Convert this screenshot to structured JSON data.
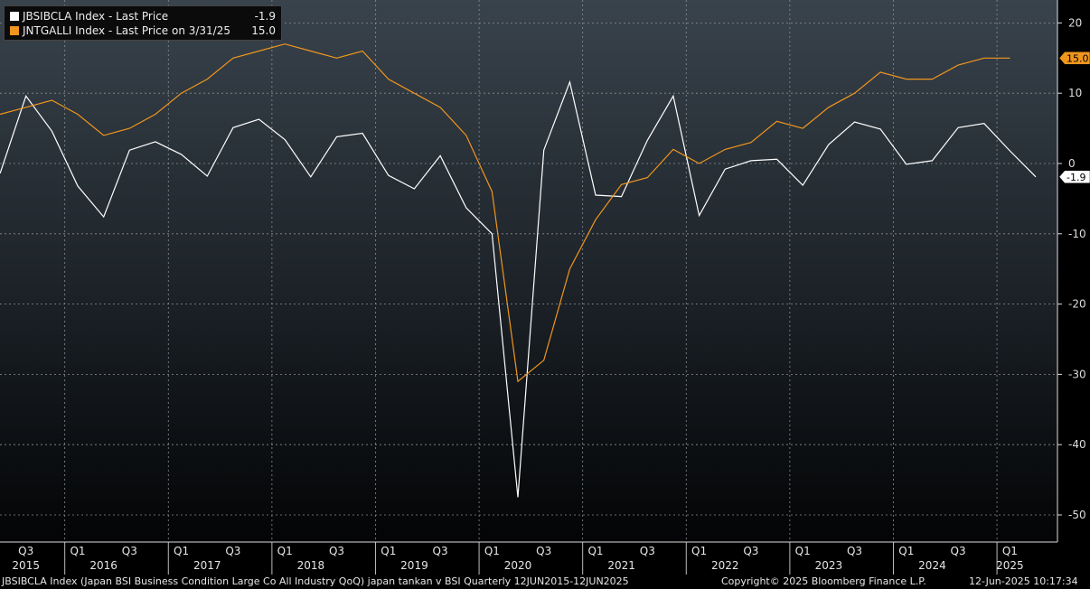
{
  "legend": {
    "s1": {
      "name": "JBSIBCLA Index - Last Price",
      "value": "-1.9",
      "color": "#ffffff"
    },
    "s2": {
      "name": "JNTGALLI Index - Last Price on 3/31/25",
      "value": "15.0",
      "color": "#f0961e"
    }
  },
  "footer": {
    "description": "JBSIBCLA Index (Japan BSI Business Condition Large Co All Industry QoQ) japan tankan v BSI  Quarterly 12JUN2015-12JUN2025",
    "copyright": "Copyright© 2025 Bloomberg Finance L.P.",
    "timestamp": "12-Jun-2025 10:17:34"
  },
  "chart_data": {
    "type": "line",
    "ylim": [
      -53,
      21
    ],
    "yticks": [
      20,
      10,
      0,
      -10,
      -20,
      -30,
      -40,
      -50
    ],
    "grid": true,
    "legend_position": "top-left",
    "x_quarter_labels": [
      {
        "q": 2015.5,
        "label": "Q3"
      },
      {
        "q": 2016.0,
        "label": "Q1"
      },
      {
        "q": 2016.5,
        "label": "Q3"
      },
      {
        "q": 2017.0,
        "label": "Q1"
      },
      {
        "q": 2017.5,
        "label": "Q3"
      },
      {
        "q": 2018.0,
        "label": "Q1"
      },
      {
        "q": 2018.5,
        "label": "Q3"
      },
      {
        "q": 2019.0,
        "label": "Q1"
      },
      {
        "q": 2019.5,
        "label": "Q3"
      },
      {
        "q": 2020.0,
        "label": "Q1"
      },
      {
        "q": 2020.5,
        "label": "Q3"
      },
      {
        "q": 2021.0,
        "label": "Q1"
      },
      {
        "q": 2021.5,
        "label": "Q3"
      },
      {
        "q": 2022.0,
        "label": "Q1"
      },
      {
        "q": 2022.5,
        "label": "Q3"
      },
      {
        "q": 2023.0,
        "label": "Q1"
      },
      {
        "q": 2023.5,
        "label": "Q3"
      },
      {
        "q": 2024.0,
        "label": "Q1"
      },
      {
        "q": 2024.5,
        "label": "Q3"
      },
      {
        "q": 2025.0,
        "label": "Q1"
      }
    ],
    "x_year_labels": [
      {
        "q": 2015.5,
        "label": "2015"
      },
      {
        "q": 2016.25,
        "label": "2016"
      },
      {
        "q": 2017.25,
        "label": "2017"
      },
      {
        "q": 2018.25,
        "label": "2018"
      },
      {
        "q": 2019.25,
        "label": "2019"
      },
      {
        "q": 2020.25,
        "label": "2020"
      },
      {
        "q": 2021.25,
        "label": "2021"
      },
      {
        "q": 2022.25,
        "label": "2022"
      },
      {
        "q": 2023.25,
        "label": "2023"
      },
      {
        "q": 2024.25,
        "label": "2024"
      },
      {
        "q": 2025.0,
        "label": "2025"
      }
    ],
    "x_year_separators": [
      2015.875,
      2016.875,
      2017.875,
      2018.875,
      2019.875,
      2020.875,
      2021.875,
      2022.875,
      2023.875,
      2024.875
    ],
    "series": [
      {
        "name": "JBSIBCLA Index - Last Price",
        "color": "#ffffff",
        "last_value": -1.9,
        "x": [
          2015.25,
          2015.5,
          2015.75,
          2016.0,
          2016.25,
          2016.5,
          2016.75,
          2017.0,
          2017.25,
          2017.5,
          2017.75,
          2018.0,
          2018.25,
          2018.5,
          2018.75,
          2019.0,
          2019.25,
          2019.5,
          2019.75,
          2020.0,
          2020.25,
          2020.5,
          2020.75,
          2021.0,
          2021.25,
          2021.5,
          2021.75,
          2022.0,
          2022.25,
          2022.5,
          2022.75,
          2023.0,
          2023.25,
          2023.5,
          2023.75,
          2024.0,
          2024.25,
          2024.5,
          2024.75,
          2025.0,
          2025.25
        ],
        "y": [
          -1.4,
          9.6,
          4.6,
          -3.2,
          -7.6,
          1.9,
          3.1,
          1.3,
          -1.8,
          5.1,
          6.3,
          3.4,
          -1.9,
          3.8,
          4.3,
          -1.7,
          -3.6,
          1.1,
          -6.3,
          -10.0,
          -47.5,
          1.9,
          11.6,
          -4.5,
          -4.7,
          3.3,
          9.6,
          -7.4,
          -0.8,
          0.4,
          0.6,
          -3.1,
          2.7,
          5.9,
          4.9,
          -0.1,
          0.4,
          5.1,
          5.7,
          1.8,
          -1.9
        ]
      },
      {
        "name": "JNTGALLI Index - Last Price on 3/31/25",
        "color": "#f0961e",
        "last_value": 15.0,
        "x": [
          2015.25,
          2015.5,
          2015.75,
          2016.0,
          2016.25,
          2016.5,
          2016.75,
          2017.0,
          2017.25,
          2017.5,
          2017.75,
          2018.0,
          2018.25,
          2018.5,
          2018.75,
          2019.0,
          2019.25,
          2019.5,
          2019.75,
          2020.0,
          2020.25,
          2020.5,
          2020.75,
          2021.0,
          2021.25,
          2021.5,
          2021.75,
          2022.0,
          2022.25,
          2022.5,
          2022.75,
          2023.0,
          2023.25,
          2023.5,
          2023.75,
          2024.0,
          2024.25,
          2024.5,
          2024.75,
          2025.0
        ],
        "y": [
          7,
          8,
          9,
          7,
          4,
          5,
          7,
          10,
          12,
          15,
          16,
          17,
          16,
          15,
          16,
          12,
          10,
          8,
          4,
          -4,
          -31,
          -28,
          -15,
          -8,
          -3,
          -2,
          2,
          0,
          2,
          3,
          6,
          5,
          8,
          10,
          13,
          12,
          12,
          14,
          15,
          15
        ]
      }
    ]
  }
}
